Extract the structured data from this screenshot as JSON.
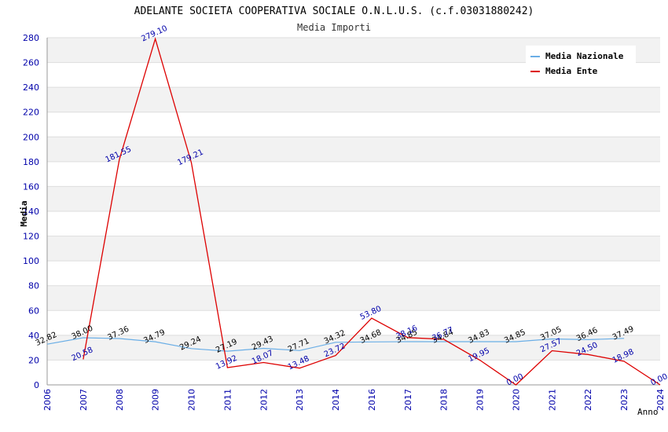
{
  "chart_data": {
    "type": "line",
    "title": "ADELANTE SOCIETA COOPERATIVA SOCIALE O.N.L.U.S. (c.f.03031880242)",
    "subtitle": "Media Importi",
    "xlabel": "Anno",
    "ylabel": "Media",
    "ylim": [
      0,
      280
    ],
    "yticks": [
      "0",
      "20",
      "40",
      "60",
      "80",
      "100",
      "120",
      "140",
      "160",
      "180",
      "200",
      "220",
      "240",
      "260",
      "280"
    ],
    "categories": [
      "2006",
      "2007",
      "2008",
      "2009",
      "2010",
      "2011",
      "2012",
      "2013",
      "2014",
      "2016",
      "2017",
      "2018",
      "2019",
      "2020",
      "2021",
      "2022",
      "2023",
      "2024"
    ],
    "legend_position": "top-right",
    "grid": true,
    "series": [
      {
        "name": "Media Nazionale",
        "color": "#6aaee6",
        "values": [
          32.82,
          38.0,
          37.36,
          34.79,
          29.24,
          27.19,
          29.43,
          27.71,
          34.32,
          34.68,
          34.85,
          34.84,
          34.83,
          34.85,
          37.05,
          36.46,
          37.49,
          null
        ],
        "labels": [
          "32.82",
          "38.00",
          "37.36",
          "34.79",
          "29.24",
          "27.19",
          "29.43",
          "27.71",
          "34.32",
          "34.68",
          "34.85",
          "34.84",
          "34.83",
          "34.85",
          "37.05",
          "36.46",
          "37.49",
          null
        ]
      },
      {
        "name": "Media Ente",
        "color": "#dd0000",
        "values": [
          null,
          20.58,
          181.55,
          279.1,
          179.21,
          13.92,
          18.07,
          13.48,
          23.72,
          53.8,
          38.16,
          36.77,
          19.95,
          0.0,
          27.57,
          24.5,
          18.98,
          0.0
        ],
        "labels": [
          null,
          "20.58",
          "181.55",
          "279.10",
          "179.21",
          "13.92",
          "18.07",
          "13.48",
          "23.72",
          "53.80",
          "38.16",
          "36.77",
          "19.95",
          "0.00",
          "27.57",
          "24.50",
          "18.98",
          "0.00"
        ]
      }
    ]
  }
}
